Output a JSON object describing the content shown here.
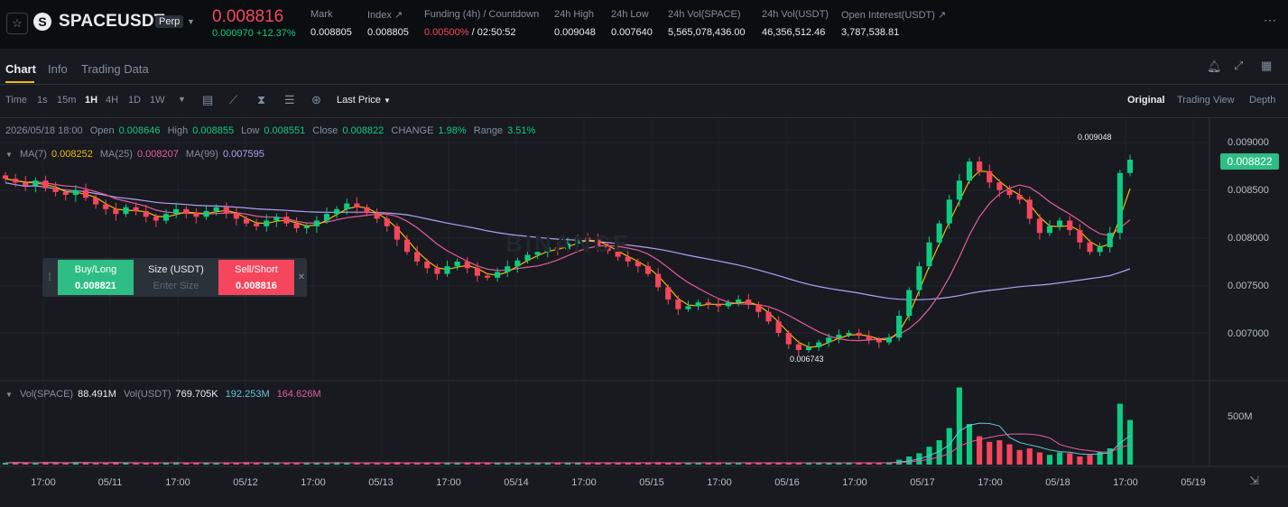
{
  "header": {
    "symbol": "SPACEUSDT",
    "contract_badge": "Perp",
    "last_price": "0.008816",
    "change": "0.000970 +12.37%",
    "stats": [
      {
        "label": "Mark",
        "value": "0.008805"
      },
      {
        "label": "Index ↗",
        "value": "0.008805"
      },
      {
        "label": "Funding (4h) / Countdown",
        "value_rate": "0.00500%",
        "value_countdown": "/ 02:50:52"
      },
      {
        "label": "24h High",
        "value": "0.009048"
      },
      {
        "label": "24h Low",
        "value": "0.007640"
      },
      {
        "label": "24h Vol(SPACE)",
        "value": "5,565,078,436.00"
      },
      {
        "label": "24h Vol(USDT)",
        "value": "46,356,512.46"
      },
      {
        "label": "Open Interest(USDT) ↗",
        "value": "3,787,538.81"
      }
    ]
  },
  "tabs": [
    "Chart",
    "Info",
    "Trading Data"
  ],
  "toolbar": {
    "time_label": "Time",
    "intervals": [
      "1s",
      "15m",
      "1H",
      "4H",
      "1D",
      "1W"
    ],
    "active_interval": "1H",
    "price_type": "Last Price",
    "views": [
      "Original",
      "Trading View",
      "Depth"
    ],
    "active_view": "Original"
  },
  "ohlc": {
    "datetime": "2026/05/18 18:00",
    "open_label": "Open",
    "open": "0.008646",
    "high_label": "High",
    "high": "0.008855",
    "low_label": "Low",
    "low": "0.008551",
    "close_label": "Close",
    "close": "0.008822",
    "change_label": "CHANGE",
    "change": "1.98%",
    "range_label": "Range",
    "range": "3.51%"
  },
  "ma": {
    "ma7_label": "MA(7)",
    "ma7": "0.008252",
    "ma25_label": "MA(25)",
    "ma25": "0.008207",
    "ma99_label": "MA(99)",
    "ma99": "0.007595"
  },
  "volume": {
    "vol_space_label": "Vol(SPACE)",
    "vol_space": "88.491M",
    "vol_usdt_label": "Vol(USDT)",
    "vol_usdt": "769.705K",
    "ma1": "192.253M",
    "ma2": "164.626M"
  },
  "quick_trade": {
    "buy_label": "Buy/Long",
    "buy_price": "0.008821",
    "size_label": "Size (USDT)",
    "size_placeholder": "Enter Size",
    "sell_label": "Sell/Short",
    "sell_price": "0.008816"
  },
  "markers": {
    "high": "0.009048",
    "low": "0.006743"
  },
  "price_axis": [
    "0.009000",
    "0.008500",
    "0.008000",
    "0.007500",
    "0.007000"
  ],
  "current_price_tag": "0.008822",
  "volume_axis": [
    "500M"
  ],
  "time_axis": [
    "17:00",
    "05/11",
    "17:00",
    "05/12",
    "17:00",
    "05/13",
    "17:00",
    "05/14",
    "17:00",
    "05/15",
    "17:00",
    "05/16",
    "17:00",
    "05/17",
    "17:00",
    "05/18",
    "17:00",
    "05/19"
  ],
  "colors": {
    "up": "#0ecb81",
    "down": "#f6465d",
    "accent": "#f0b90b",
    "ma7": "#f0b90b",
    "ma25": "#e45d9c",
    "ma99": "#b49ff7"
  },
  "icons": [
    "star-icon",
    "space-logo-icon",
    "more-icon",
    "bell-icon",
    "expand-icon",
    "grid-icon",
    "indicator-icon",
    "drawing-icon",
    "candle-type-icon",
    "settings-icon",
    "hide-icon",
    "scale-icon"
  ],
  "chart_data": {
    "type": "candlestick",
    "interval": "1H",
    "ylim": [
      0.0066,
      0.0092
    ],
    "series": [
      {
        "name": "MA(7)",
        "last": 0.008252
      },
      {
        "name": "MA(25)",
        "last": 0.008207
      },
      {
        "name": "MA(99)",
        "last": 0.007595
      }
    ],
    "close_path": [
      0.00862,
      0.00858,
      0.00855,
      0.0086,
      0.00852,
      0.00848,
      0.00845,
      0.0085,
      0.00842,
      0.00835,
      0.0083,
      0.00825,
      0.00832,
      0.00828,
      0.00822,
      0.00818,
      0.00825,
      0.0083,
      0.00826,
      0.00822,
      0.00828,
      0.00832,
      0.00826,
      0.0082,
      0.00815,
      0.00812,
      0.00818,
      0.00822,
      0.00815,
      0.0081,
      0.00812,
      0.00818,
      0.00825,
      0.0083,
      0.00836,
      0.00832,
      0.00826,
      0.0082,
      0.00812,
      0.00798,
      0.00785,
      0.00775,
      0.00768,
      0.00762,
      0.0077,
      0.00775,
      0.00768,
      0.0076,
      0.00758,
      0.00764,
      0.0077,
      0.00776,
      0.00782,
      0.00785,
      0.0079,
      0.00788,
      0.00794,
      0.008,
      0.00798,
      0.00792,
      0.00786,
      0.0078,
      0.00775,
      0.0077,
      0.00762,
      0.00748,
      0.00735,
      0.00725,
      0.00728,
      0.00732,
      0.0073,
      0.00728,
      0.00732,
      0.00735,
      0.0073,
      0.00722,
      0.00712,
      0.007,
      0.00688,
      0.00682,
      0.00685,
      0.0069,
      0.00695,
      0.00698,
      0.007,
      0.00697,
      0.00693,
      0.0069,
      0.00695,
      0.00718,
      0.00745,
      0.0077,
      0.00795,
      0.00815,
      0.0084,
      0.0086,
      0.0088,
      0.0087,
      0.00858,
      0.0085,
      0.00845,
      0.0084,
      0.0082,
      0.00805,
      0.00812,
      0.00818,
      0.00808,
      0.00795,
      0.00785,
      0.0079,
      0.00805,
      0.00868,
      0.00882
    ],
    "volume_path": [
      0.02,
      0.03,
      0.02,
      0.02,
      0.03,
      0.02,
      0.02,
      0.03,
      0.02,
      0.02,
      0.02,
      0.03,
      0.02,
      0.02,
      0.02,
      0.02,
      0.02,
      0.03,
      0.02,
      0.02,
      0.02,
      0.02,
      0.02,
      0.02,
      0.03,
      0.02,
      0.02,
      0.02,
      0.02,
      0.02,
      0.02,
      0.02,
      0.02,
      0.03,
      0.02,
      0.02,
      0.02,
      0.02,
      0.02,
      0.03,
      0.02,
      0.02,
      0.02,
      0.02,
      0.02,
      0.02,
      0.02,
      0.02,
      0.02,
      0.02,
      0.02,
      0.02,
      0.02,
      0.02,
      0.02,
      0.02,
      0.02,
      0.02,
      0.02,
      0.02,
      0.02,
      0.02,
      0.02,
      0.02,
      0.02,
      0.03,
      0.02,
      0.02,
      0.02,
      0.02,
      0.02,
      0.02,
      0.02,
      0.02,
      0.02,
      0.02,
      0.02,
      0.02,
      0.02,
      0.02,
      0.02,
      0.02,
      0.02,
      0.02,
      0.02,
      0.02,
      0.02,
      0.02,
      0.03,
      0.06,
      0.1,
      0.14,
      0.22,
      0.3,
      0.45,
      0.95,
      0.5,
      0.35,
      0.28,
      0.3,
      0.25,
      0.18,
      0.2,
      0.15,
      0.12,
      0.15,
      0.14,
      0.1,
      0.12,
      0.16,
      0.2,
      0.75,
      0.55
    ]
  }
}
